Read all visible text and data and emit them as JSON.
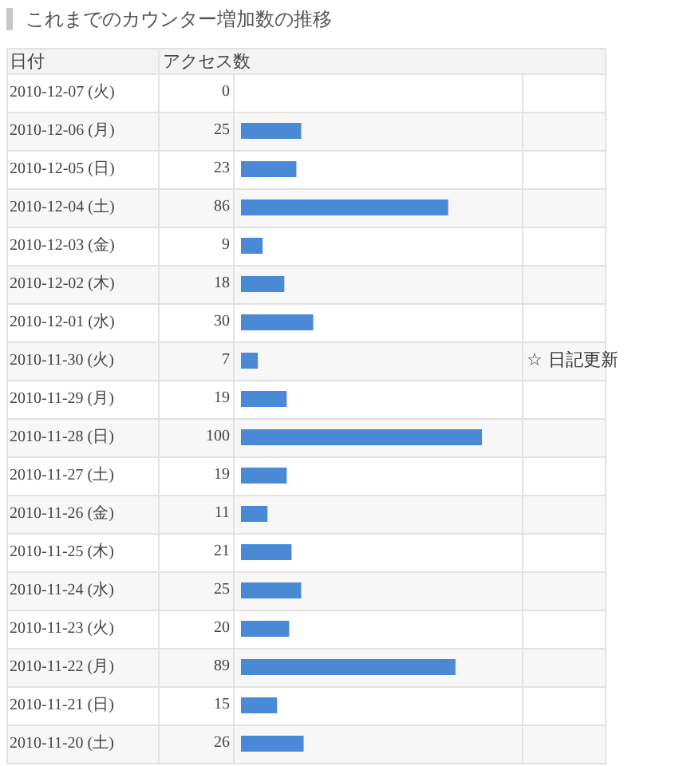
{
  "chart_data": {
    "type": "bar",
    "orientation": "horizontal",
    "title": "これまでのカウンター増加数の推移",
    "ylabel": "日付",
    "xlabel": "アクセス数",
    "categories": [
      "2010-12-07 (火)",
      "2010-12-06 (月)",
      "2010-12-05 (日)",
      "2010-12-04 (土)",
      "2010-12-03 (金)",
      "2010-12-02 (木)",
      "2010-12-01 (水)",
      "2010-11-30 (火)",
      "2010-11-29 (月)",
      "2010-11-28 (日)",
      "2010-11-27 (土)",
      "2010-11-26 (金)",
      "2010-11-25 (木)",
      "2010-11-24 (水)",
      "2010-11-23 (火)",
      "2010-11-22 (月)",
      "2010-11-21 (日)",
      "2010-11-20 (土)"
    ],
    "values": [
      0,
      25,
      23,
      86,
      9,
      18,
      30,
      7,
      19,
      100,
      19,
      11,
      21,
      25,
      20,
      89,
      15,
      26
    ],
    "color": "#4a89d6",
    "data_labels": true,
    "tick_labels": "y",
    "grid": true,
    "annotations": [
      "☆ 日記更新"
    ]
  }
}
